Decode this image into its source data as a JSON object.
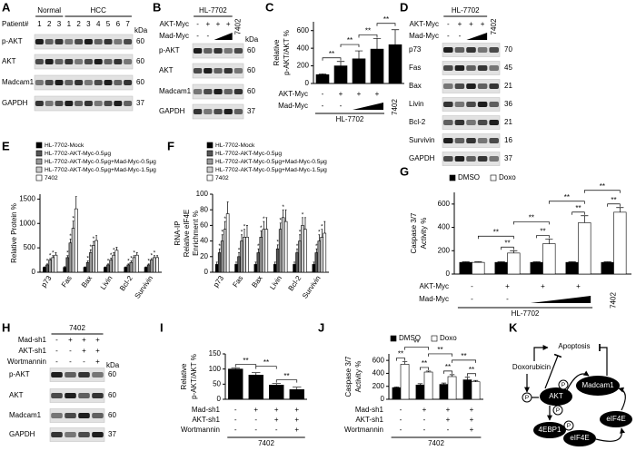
{
  "panel_letters": [
    "A",
    "B",
    "C",
    "D",
    "E",
    "F",
    "G",
    "H",
    "I",
    "J",
    "K"
  ],
  "kda_label": "kDa",
  "blots": {
    "A": {
      "groups": [
        "Normal",
        "HCC"
      ],
      "lane_header": "Patient#",
      "lanes": [
        "1",
        "2",
        "3",
        "1",
        "2",
        "3",
        "4",
        "5",
        "6",
        "7"
      ],
      "rows": [
        "p-AKT",
        "AKT",
        "Madcam1",
        "GAPDH"
      ],
      "kda": [
        60,
        60,
        60,
        37
      ]
    },
    "B": {
      "cell_line": "HL-7702",
      "conditions": [
        {
          "name": "AKT-Myc",
          "marks": [
            "-",
            "+",
            "+",
            "+"
          ]
        },
        {
          "name": "Mad-Myc",
          "marks": [
            "-",
            "-"
          ]
        }
      ],
      "other_line": "7402",
      "rows": [
        "p-AKT",
        "AKT",
        "Madcam1",
        "GAPDH"
      ],
      "kda": [
        60,
        60,
        60,
        37
      ]
    },
    "D": {
      "cell_line": "HL-7702",
      "conditions": [
        {
          "name": "AKT-Myc",
          "marks": [
            "-",
            "+",
            "+",
            "+"
          ]
        },
        {
          "name": "Mad-Myc",
          "marks": [
            "-",
            "-"
          ]
        }
      ],
      "other_line": "7402",
      "rows": [
        "p73",
        "Fas",
        "Bax",
        "Livin",
        "Bcl-2",
        "Survivin",
        "GAPDH"
      ],
      "kda": [
        70,
        45,
        21,
        36,
        21,
        16,
        37
      ]
    },
    "H": {
      "cell_line": "7402",
      "conditions": [
        {
          "name": "Mad-sh1",
          "marks": [
            "-",
            "+",
            "+",
            "+"
          ]
        },
        {
          "name": "AKT-sh1",
          "marks": [
            "-",
            "-",
            "+",
            "+"
          ]
        },
        {
          "name": "Wortmannin",
          "marks": [
            "-",
            "-",
            "-",
            "+"
          ]
        }
      ],
      "rows": [
        "p-AKT",
        "AKT",
        "Madcam1",
        "GAPDH"
      ],
      "kda": [
        60,
        60,
        60,
        37
      ]
    }
  },
  "chart_data": [
    {
      "type": "bar",
      "y_label": [
        "Relative",
        "p-AKT/AKT %"
      ],
      "values": [
        100,
        200,
        280,
        390,
        440
      ],
      "errors": [
        10,
        50,
        90,
        120,
        170
      ],
      "color": "#000000",
      "ylim": [
        0,
        700
      ],
      "yticks": [
        0,
        200,
        400,
        600
      ],
      "lane_significance": [
        "**",
        "**",
        "**",
        "**"
      ],
      "conditions": [
        {
          "name": "AKT-Myc",
          "marks": [
            "-",
            "+",
            "+",
            "+"
          ]
        },
        {
          "name": "Mad-Myc",
          "marks": [
            "-",
            "-"
          ]
        }
      ],
      "group_label": "HL-7702",
      "other_line": "7402"
    },
    {
      "type": "bar",
      "y_label": [
        "Relative Protein %"
      ],
      "categories": [
        "p73",
        "Fas",
        "Bax",
        "Livin",
        "Bcl-2",
        "Survivin"
      ],
      "ylim": [
        0,
        1600
      ],
      "yticks": [
        0,
        500,
        1000,
        1500
      ],
      "series": [
        {
          "name": "HL-7702-Mock",
          "color": "#000000",
          "values": [
            100,
            100,
            100,
            100,
            100,
            100
          ],
          "errors": [
            10,
            15,
            10,
            10,
            10,
            10
          ]
        },
        {
          "name": "HL-7702-AKT-Myc-0.5μg",
          "color": "#555555",
          "values": [
            150,
            300,
            200,
            150,
            150,
            150
          ],
          "errors": [
            20,
            40,
            30,
            20,
            20,
            20
          ],
          "stars": [
            "*",
            "*",
            "*",
            "*",
            "*",
            "*"
          ]
        },
        {
          "name": "HL-7702-AKT-Myc-0.5μg+Mad-Myc-0.5μg",
          "color": "#999999",
          "values": [
            250,
            600,
            400,
            250,
            200,
            250
          ],
          "errors": [
            30,
            80,
            60,
            40,
            30,
            30
          ],
          "stars": [
            "*",
            "*",
            "*",
            "*",
            "*",
            "*"
          ]
        },
        {
          "name": "HL-7702-AKT-Myc-0.5μg+Mad-Myc-1.5μg",
          "color": "#cccccc",
          "values": [
            300,
            900,
            550,
            350,
            300,
            300
          ],
          "errors": [
            40,
            150,
            80,
            50,
            40,
            40
          ],
          "stars": [
            "*",
            "*",
            "*",
            "*",
            "*",
            "*"
          ]
        },
        {
          "name": "7402",
          "color": "#ffffff",
          "values": [
            350,
            1300,
            650,
            450,
            350,
            300
          ],
          "errors": [
            50,
            250,
            100,
            60,
            50,
            40
          ]
        }
      ]
    },
    {
      "type": "bar",
      "y_label": [
        "RNA-IP",
        "Relative eIF4E",
        "Enrichment %"
      ],
      "categories": [
        "p73",
        "Fas",
        "Bax",
        "Livin",
        "Bcl-2",
        "Survivin"
      ],
      "ylim": [
        0,
        100
      ],
      "yticks": [
        0,
        20,
        40,
        60,
        80,
        100
      ],
      "series": [
        {
          "name": "HL-7702-Mock",
          "color": "#000000",
          "values": [
            10,
            10,
            10,
            10,
            10,
            10
          ],
          "errors": [
            3,
            3,
            3,
            3,
            3,
            3
          ]
        },
        {
          "name": "HL-7702-AKT-Myc-0.5μg",
          "color": "#555555",
          "values": [
            25,
            20,
            25,
            30,
            25,
            25
          ],
          "errors": [
            5,
            5,
            5,
            5,
            5,
            5
          ],
          "stars": [
            "*",
            "*",
            "*",
            "*",
            "*",
            "*"
          ]
        },
        {
          "name": "HL-7702-AKT-Myc-0.5μg+Mad-Myc-0.5μg",
          "color": "#999999",
          "values": [
            40,
            40,
            45,
            55,
            40,
            40
          ],
          "errors": [
            8,
            8,
            8,
            8,
            8,
            8
          ],
          "stars": [
            "*",
            "*",
            "*",
            "*",
            "*",
            "*"
          ]
        },
        {
          "name": "HL-7702-AKT-Myc-0.5μg+Mad-Myc-1.5μg",
          "color": "#cccccc",
          "values": [
            55,
            45,
            55,
            70,
            60,
            45
          ],
          "errors": [
            10,
            10,
            10,
            10,
            10,
            10
          ],
          "stars": [
            "*",
            "*",
            "*",
            "*",
            "*",
            "*"
          ]
        },
        {
          "name": "7402",
          "color": "#ffffff",
          "values": [
            75,
            45,
            55,
            65,
            55,
            50
          ],
          "errors": [
            15,
            15,
            15,
            15,
            15,
            15
          ]
        }
      ]
    },
    {
      "type": "bar",
      "y_label": [
        "Caspase 3/7",
        "Activity %"
      ],
      "ylim": [
        0,
        700
      ],
      "yticks": [
        0,
        200,
        400,
        600
      ],
      "series": [
        {
          "name": "DMSO",
          "color": "#000000",
          "values": [
            100,
            100,
            100,
            100,
            100
          ],
          "errors": [
            5,
            5,
            5,
            5,
            5
          ]
        },
        {
          "name": "Doxo",
          "color": "#ffffff",
          "values": [
            100,
            180,
            260,
            440,
            530
          ],
          "errors": [
            5,
            20,
            40,
            60,
            40
          ]
        }
      ],
      "pair_significance": [
        null,
        "**",
        "**",
        "**",
        "**"
      ],
      "lane_significance": [
        "**",
        "**",
        "**",
        "**"
      ],
      "conditions": [
        {
          "name": "AKT-Myc",
          "marks": [
            "-",
            "+",
            "+",
            "+"
          ]
        },
        {
          "name": "Mad-Myc",
          "marks": [
            "-",
            "-"
          ]
        }
      ],
      "group_label": "HL-7702",
      "other_line": "7402"
    },
    {
      "type": "bar",
      "y_label": [
        "Relative",
        "p-AKT/AKT %"
      ],
      "values": [
        100,
        80,
        47,
        32
      ],
      "errors": [
        3,
        8,
        5,
        8
      ],
      "color": "#000000",
      "ylim": [
        0,
        150
      ],
      "yticks": [
        0,
        50,
        100,
        150
      ],
      "lane_significance": [
        "**",
        "**",
        "**"
      ],
      "conditions": [
        {
          "name": "Mad-sh1",
          "marks": [
            "-",
            "+",
            "+",
            "+"
          ]
        },
        {
          "name": "AKT-sh1",
          "marks": [
            "-",
            "-",
            "+",
            "+"
          ]
        },
        {
          "name": "Wortmannin",
          "marks": [
            "-",
            "-",
            "-",
            "+"
          ]
        }
      ],
      "group_label": "7402"
    },
    {
      "type": "bar",
      "y_label": [
        "Caspase 3/7",
        "Activity %"
      ],
      "ylim": [
        0,
        700
      ],
      "yticks": [
        0,
        200,
        400,
        600
      ],
      "series": [
        {
          "name": "DMSO",
          "color": "#000000",
          "values": [
            180,
            220,
            230,
            300
          ],
          "errors": [
            10,
            20,
            20,
            40
          ]
        },
        {
          "name": "Doxo",
          "color": "#ffffff",
          "values": [
            540,
            420,
            350,
            270
          ],
          "errors": [
            40,
            15,
            30,
            20
          ]
        }
      ],
      "pair_significance": [
        "**",
        "**",
        "**",
        "**"
      ],
      "lane_significance": [
        "**",
        "**",
        "**"
      ],
      "conditions": [
        {
          "name": "Mad-sh1",
          "marks": [
            "-",
            "+",
            "+",
            "+"
          ]
        },
        {
          "name": "AKT-sh1",
          "marks": [
            "-",
            "-",
            "+",
            "+"
          ]
        },
        {
          "name": "Wortmannin",
          "marks": [
            "-",
            "-",
            "-",
            "+"
          ]
        }
      ],
      "group_label": "7402"
    }
  ],
  "diagram": {
    "nodes": [
      "Apoptosis",
      "Doxorubicin",
      "AKT",
      "Madcam1",
      "4EBP1",
      "eIF4E",
      "eIF4E"
    ],
    "phospho": [
      "P",
      "P",
      "P",
      "P"
    ]
  }
}
